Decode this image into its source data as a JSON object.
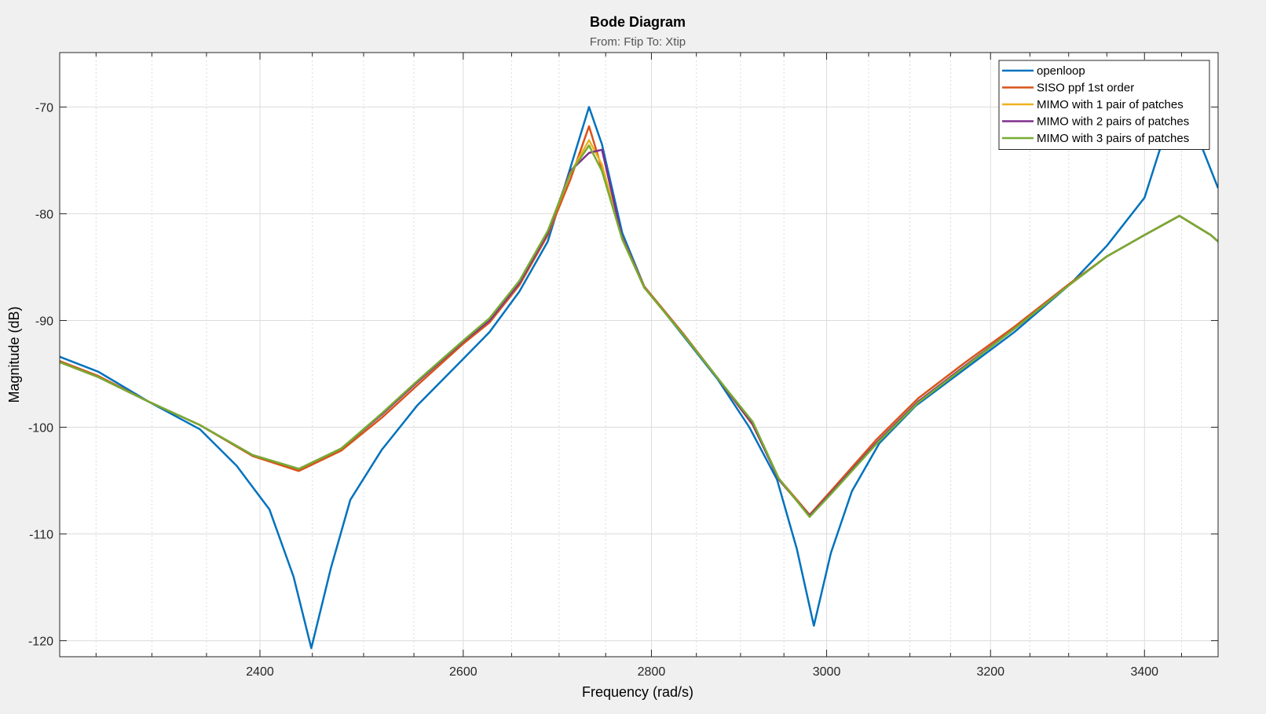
{
  "chart_data": {
    "type": "line",
    "title": "Bode Diagram",
    "subtitle": "From: Ftip  To: Xtip",
    "xlabel": "Frequency  (rad/s)",
    "ylabel": "Magnitude (dB)",
    "xscale": "log",
    "xlim": [
      2218,
      3500
    ],
    "ylim": [
      -121.5,
      -64.9
    ],
    "xticks": [
      2400,
      2600,
      2800,
      3000,
      3200,
      3400
    ],
    "yticks": [
      -120,
      -110,
      -100,
      -90,
      -80,
      -70
    ],
    "grid": true,
    "minor_grid": true,
    "legend_position": "top-right",
    "series": [
      {
        "name": "openloop",
        "color": "#0072bd",
        "points": [
          [
            2218,
            -93.4
          ],
          [
            2252,
            -94.8
          ],
          [
            2297,
            -97.6
          ],
          [
            2344,
            -100.2
          ],
          [
            2378,
            -103.6
          ],
          [
            2409,
            -107.7
          ],
          [
            2432,
            -114.0
          ],
          [
            2449,
            -120.7
          ],
          [
            2468,
            -113.2
          ],
          [
            2487,
            -106.8
          ],
          [
            2518,
            -102.1
          ],
          [
            2553,
            -98.0
          ],
          [
            2601,
            -93.5
          ],
          [
            2627,
            -91.1
          ],
          [
            2658,
            -87.3
          ],
          [
            2688,
            -82.6
          ],
          [
            2732,
            -70.0
          ],
          [
            2746,
            -73.5
          ],
          [
            2768,
            -81.8
          ],
          [
            2792,
            -86.8
          ],
          [
            2835,
            -91.4
          ],
          [
            2874,
            -95.5
          ],
          [
            2910,
            -100.0
          ],
          [
            2942,
            -104.9
          ],
          [
            2965,
            -111.4
          ],
          [
            2985,
            -118.6
          ],
          [
            3005,
            -111.8
          ],
          [
            3030,
            -106.0
          ],
          [
            3063,
            -101.5
          ],
          [
            3107,
            -98.0
          ],
          [
            3167,
            -94.6
          ],
          [
            3230,
            -91.1
          ],
          [
            3302,
            -86.6
          ],
          [
            3350,
            -83.0
          ],
          [
            3400,
            -78.5
          ],
          [
            3432,
            -71.5
          ],
          [
            3455,
            -70.4
          ],
          [
            3478,
            -73.8
          ],
          [
            3500,
            -77.6
          ]
        ]
      },
      {
        "name": "SISO ppf 1st order",
        "color": "#d95319",
        "points": [
          [
            2218,
            -93.8
          ],
          [
            2252,
            -95.2
          ],
          [
            2297,
            -97.6
          ],
          [
            2344,
            -99.8
          ],
          [
            2393,
            -102.7
          ],
          [
            2437,
            -104.1
          ],
          [
            2478,
            -102.2
          ],
          [
            2518,
            -99.1
          ],
          [
            2553,
            -96.1
          ],
          [
            2601,
            -92.1
          ],
          [
            2627,
            -90.2
          ],
          [
            2658,
            -86.7
          ],
          [
            2688,
            -82.0
          ],
          [
            2712,
            -76.8
          ],
          [
            2732,
            -71.8
          ],
          [
            2746,
            -75.8
          ],
          [
            2768,
            -82.2
          ],
          [
            2792,
            -86.8
          ],
          [
            2835,
            -91.2
          ],
          [
            2874,
            -95.4
          ],
          [
            2914,
            -99.8
          ],
          [
            2944,
            -104.8
          ],
          [
            2980,
            -108.2
          ],
          [
            3007,
            -105.8
          ],
          [
            3059,
            -101.2
          ],
          [
            3110,
            -97.3
          ],
          [
            3167,
            -94.0
          ],
          [
            3230,
            -90.6
          ],
          [
            3302,
            -86.5
          ],
          [
            3350,
            -84.0
          ],
          [
            3400,
            -82.0
          ],
          [
            3447,
            -80.2
          ],
          [
            3490,
            -82.0
          ],
          [
            3500,
            -82.6
          ]
        ]
      },
      {
        "name": "MIMO with 1 pair of patches",
        "color": "#edb120",
        "points": [
          [
            2218,
            -93.9
          ],
          [
            2252,
            -95.3
          ],
          [
            2297,
            -97.6
          ],
          [
            2344,
            -99.8
          ],
          [
            2393,
            -102.6
          ],
          [
            2437,
            -103.9
          ],
          [
            2478,
            -102.0
          ],
          [
            2518,
            -98.8
          ],
          [
            2553,
            -95.8
          ],
          [
            2601,
            -91.9
          ],
          [
            2627,
            -90.0
          ],
          [
            2658,
            -86.5
          ],
          [
            2688,
            -81.8
          ],
          [
            2712,
            -76.2
          ],
          [
            2732,
            -73.1
          ],
          [
            2746,
            -75.4
          ],
          [
            2768,
            -82.3
          ],
          [
            2792,
            -86.9
          ],
          [
            2835,
            -91.3
          ],
          [
            2874,
            -95.4
          ],
          [
            2914,
            -99.7
          ],
          [
            2944,
            -104.9
          ],
          [
            2980,
            -108.3
          ],
          [
            3007,
            -106.0
          ],
          [
            3059,
            -101.5
          ],
          [
            3110,
            -97.6
          ],
          [
            3167,
            -94.3
          ],
          [
            3230,
            -90.8
          ],
          [
            3302,
            -86.6
          ],
          [
            3350,
            -84.0
          ],
          [
            3400,
            -82.0
          ],
          [
            3447,
            -80.2
          ],
          [
            3490,
            -82.0
          ],
          [
            3500,
            -82.6
          ]
        ]
      },
      {
        "name": "MIMO with 2 pairs of patches",
        "color": "#7e2f8e",
        "points": [
          [
            2218,
            -93.9
          ],
          [
            2252,
            -95.3
          ],
          [
            2297,
            -97.6
          ],
          [
            2344,
            -99.8
          ],
          [
            2393,
            -102.6
          ],
          [
            2437,
            -103.9
          ],
          [
            2478,
            -102.0
          ],
          [
            2518,
            -98.8
          ],
          [
            2553,
            -95.8
          ],
          [
            2601,
            -91.9
          ],
          [
            2627,
            -90.0
          ],
          [
            2658,
            -86.5
          ],
          [
            2688,
            -81.8
          ],
          [
            2712,
            -76.0
          ],
          [
            2732,
            -74.3
          ],
          [
            2746,
            -74.0
          ],
          [
            2768,
            -82.3
          ],
          [
            2792,
            -86.9
          ],
          [
            2835,
            -91.3
          ],
          [
            2874,
            -95.4
          ],
          [
            2914,
            -99.7
          ],
          [
            2944,
            -104.9
          ],
          [
            2980,
            -108.3
          ],
          [
            3007,
            -106.0
          ],
          [
            3059,
            -101.5
          ],
          [
            3110,
            -97.6
          ],
          [
            3167,
            -94.3
          ],
          [
            3230,
            -90.8
          ],
          [
            3302,
            -86.6
          ],
          [
            3350,
            -84.0
          ],
          [
            3400,
            -82.0
          ],
          [
            3447,
            -80.2
          ],
          [
            3490,
            -82.0
          ],
          [
            3500,
            -82.6
          ]
        ]
      },
      {
        "name": "MIMO with 3 pairs of patches",
        "color": "#77ac30",
        "points": [
          [
            2218,
            -93.9
          ],
          [
            2252,
            -95.3
          ],
          [
            2297,
            -97.6
          ],
          [
            2344,
            -99.8
          ],
          [
            2393,
            -102.6
          ],
          [
            2437,
            -103.9
          ],
          [
            2478,
            -102.0
          ],
          [
            2518,
            -98.7
          ],
          [
            2553,
            -95.7
          ],
          [
            2601,
            -91.8
          ],
          [
            2627,
            -89.8
          ],
          [
            2658,
            -86.3
          ],
          [
            2688,
            -81.6
          ],
          [
            2712,
            -76.2
          ],
          [
            2732,
            -73.6
          ],
          [
            2746,
            -76.0
          ],
          [
            2768,
            -82.4
          ],
          [
            2792,
            -86.9
          ],
          [
            2835,
            -91.3
          ],
          [
            2874,
            -95.4
          ],
          [
            2914,
            -99.5
          ],
          [
            2944,
            -104.8
          ],
          [
            2980,
            -108.4
          ],
          [
            3007,
            -106.1
          ],
          [
            3059,
            -101.6
          ],
          [
            3110,
            -97.7
          ],
          [
            3167,
            -94.4
          ],
          [
            3230,
            -90.8
          ],
          [
            3302,
            -86.6
          ],
          [
            3350,
            -84.0
          ],
          [
            3400,
            -82.0
          ],
          [
            3447,
            -80.2
          ],
          [
            3490,
            -82.0
          ],
          [
            3500,
            -82.6
          ]
        ]
      }
    ]
  }
}
